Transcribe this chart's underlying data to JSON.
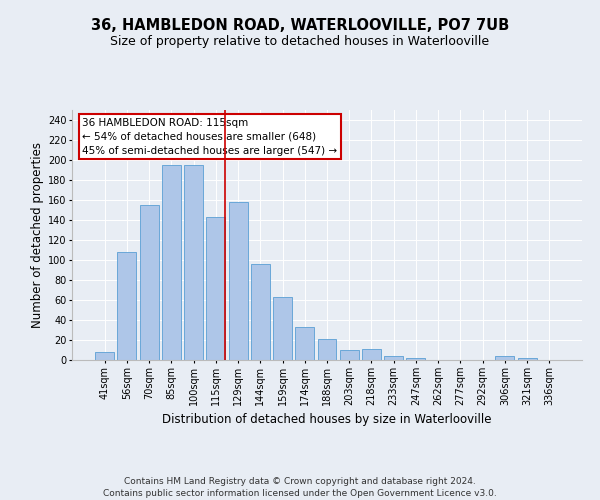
{
  "title": "36, HAMBLEDON ROAD, WATERLOOVILLE, PO7 7UB",
  "subtitle": "Size of property relative to detached houses in Waterlooville",
  "xlabel": "Distribution of detached houses by size in Waterlooville",
  "ylabel": "Number of detached properties",
  "footer_line1": "Contains HM Land Registry data © Crown copyright and database right 2024.",
  "footer_line2": "Contains public sector information licensed under the Open Government Licence v3.0.",
  "categories": [
    "41sqm",
    "56sqm",
    "70sqm",
    "85sqm",
    "100sqm",
    "115sqm",
    "129sqm",
    "144sqm",
    "159sqm",
    "174sqm",
    "188sqm",
    "203sqm",
    "218sqm",
    "233sqm",
    "247sqm",
    "262sqm",
    "277sqm",
    "292sqm",
    "306sqm",
    "321sqm",
    "336sqm"
  ],
  "values": [
    8,
    108,
    155,
    195,
    195,
    143,
    158,
    96,
    63,
    33,
    21,
    10,
    11,
    4,
    2,
    0,
    0,
    0,
    4,
    2,
    0
  ],
  "bar_color": "#aec6e8",
  "bar_edge_color": "#5a9fd4",
  "highlight_index": 5,
  "highlight_color": "#cc0000",
  "annotation_text": "36 HAMBLEDON ROAD: 115sqm\n← 54% of detached houses are smaller (648)\n45% of semi-detached houses are larger (547) →",
  "annotation_box_color": "#ffffff",
  "annotation_box_edge_color": "#cc0000",
  "ylim": [
    0,
    250
  ],
  "yticks": [
    0,
    20,
    40,
    60,
    80,
    100,
    120,
    140,
    160,
    180,
    200,
    220,
    240
  ],
  "background_color": "#e8edf4",
  "plot_background_color": "#e8edf4",
  "title_fontsize": 10.5,
  "subtitle_fontsize": 9,
  "axis_label_fontsize": 8.5,
  "tick_fontsize": 7,
  "footer_fontsize": 6.5,
  "annotation_fontsize": 7.5
}
